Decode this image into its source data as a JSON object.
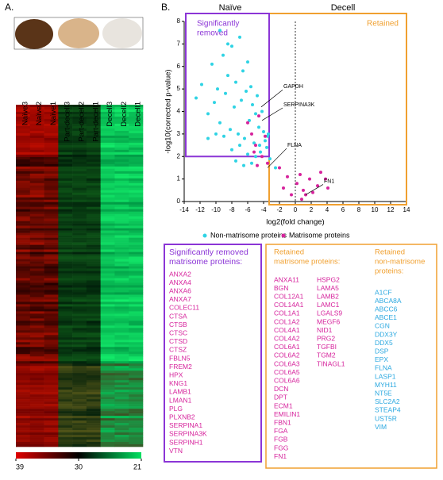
{
  "chart_data": [
    {
      "type": "heatmap",
      "panel_label": "A.",
      "categories": [
        "Naïve3",
        "Naïve2",
        "Naïve1",
        "Part-decell3",
        "Part-decell2",
        "Part-decell1",
        "Decell3",
        "Decell2",
        "Decell1"
      ],
      "colorbar_lim": [
        39,
        21
      ],
      "colorbar_ticks": [
        39,
        30,
        21
      ]
    },
    {
      "type": "scatter",
      "panel_label": "B.",
      "xlabel": "log2(fold change)",
      "ylabel": "-log10(corrected p-value)",
      "xlim": [
        -14,
        14
      ],
      "xticks": [
        -14,
        -12,
        -10,
        -8,
        -6,
        -4,
        -2,
        0,
        2,
        4,
        6,
        8,
        10,
        12,
        14
      ],
      "ylim": [
        0,
        8
      ],
      "yticks": [
        0,
        1,
        2,
        3,
        4,
        5,
        6,
        7,
        8
      ],
      "group_labels": [
        "Naïve",
        "Decell"
      ],
      "region_labels": [
        [
          "Significantly",
          "removed"
        ],
        [
          "Retained"
        ]
      ],
      "annotations": [
        "GAPDH",
        "SERPINA3K",
        "FLNA",
        "FN1"
      ],
      "series": [
        {
          "name": "Non-matrisome proteins",
          "color": "#2fd3e4",
          "x": [
            -12.5,
            -11.8,
            -11,
            -10.5,
            -10.2,
            -9.8,
            -9.5,
            -9.1,
            -8.8,
            -8.5,
            -8.2,
            -8,
            -7.7,
            -7.5,
            -7.2,
            -7,
            -6.8,
            -6.6,
            -6.4,
            -6.2,
            -6,
            -5.8,
            -5.6,
            -5.4,
            -5.2,
            -5,
            -4.8,
            -4.6,
            -4.4,
            -4.2,
            -4,
            -3.8,
            -3.6,
            -3.4,
            -3.2,
            -9,
            -8,
            -7,
            -6,
            -5,
            -10,
            -11,
            -7.5,
            -6.5,
            -5.5,
            -4.5,
            -8.5,
            -9.5,
            -3.5,
            -2.5
          ],
          "values": [
            4.6,
            5.2,
            3.9,
            6.1,
            4.4,
            5.0,
            3.5,
            6.5,
            4.8,
            5.6,
            3.2,
            6.9,
            4.2,
            5.3,
            3.0,
            7.3,
            4.5,
            5.8,
            2.8,
            4.9,
            6.2,
            3.6,
            5.1,
            4.3,
            2.6,
            3.9,
            4.7,
            3.3,
            2.2,
            4.0,
            3.1,
            2.7,
            2.4,
            3.0,
            1.9,
            2.9,
            2.3,
            2.5,
            2.1,
            2.0,
            3.0,
            2.8,
            1.8,
            1.6,
            1.7,
            2.5,
            7.0,
            7.6,
            2.9,
            1.5
          ]
        },
        {
          "name": "Matrisome proteins",
          "color": "#d6239c",
          "x": [
            -6,
            -5.5,
            -5,
            -4.6,
            -4.2,
            -3.8,
            -3.5,
            -5.2,
            -4.8,
            -1.5,
            -1,
            -0.5,
            0.2,
            0.6,
            1,
            1.3,
            1.8,
            2.2,
            2.8,
            3.2,
            3.8,
            4.1,
            -2,
            0.8
          ],
          "values": [
            3.5,
            3.0,
            2.5,
            3.8,
            2.0,
            2.9,
            1.7,
            2.2,
            1.6,
            0.6,
            1.1,
            0.3,
            0.8,
            1.2,
            0.5,
            0.3,
            1.0,
            0.4,
            0.7,
            1.3,
            1.0,
            0.6,
            1.5,
            0.1
          ]
        }
      ]
    }
  ],
  "lists": [
    {
      "title_lines": [
        "Significantly removed",
        "matrisome proteins:"
      ],
      "columns": [
        [
          "ANXA2",
          "ANXA4",
          "ANXA6",
          "ANXA7",
          "COLEC11",
          "CTSA",
          "CTSB",
          "CTSC",
          "CTSD",
          "CTSZ",
          "FBLN5",
          "FREM2",
          "HPX",
          "KNG1",
          "LAMB1",
          "LMAN1",
          "PLG",
          "PLXNB2",
          "SERPINA1",
          "SERPINA3K",
          "SERPINH1",
          "VTN"
        ]
      ]
    },
    {
      "title_lines": [
        "Retained",
        "matrisome proteins:"
      ],
      "columns": [
        [
          "ANXA11",
          "BGN",
          "COL12A1",
          "COL14A1",
          "COL1A1",
          "COL1A2",
          "COL4A1",
          "COL4A2",
          "COL6A1",
          "COL6A2",
          "COL6A3",
          "COL6A5",
          "COL6A6",
          "DCN",
          "DPT",
          "ECM1",
          "EMILIN1",
          "FBN1",
          "FGA",
          "FGB",
          "FGG",
          "FN1"
        ],
        [
          "HSPG2",
          "LAMA5",
          "LAMB2",
          "LAMC1",
          "LGALS9",
          "MEGF6",
          "NID1",
          "PRG2",
          "TGFBI",
          "TGM2",
          "TINAGL1"
        ]
      ]
    },
    {
      "title_lines": [
        "Retained",
        "non-matrisome",
        "proteins:"
      ],
      "columns": [
        [
          "A1CF",
          "ABCA8A",
          "ABCC6",
          "ABCE1",
          "CGN",
          "DDX3Y",
          "DDX5",
          "DSP",
          "EPX",
          "FLNA",
          "LASP1",
          "MYH11",
          "NT5E",
          "SLC2A2",
          "STEAP4",
          "UST5R",
          "VIM"
        ]
      ]
    }
  ]
}
